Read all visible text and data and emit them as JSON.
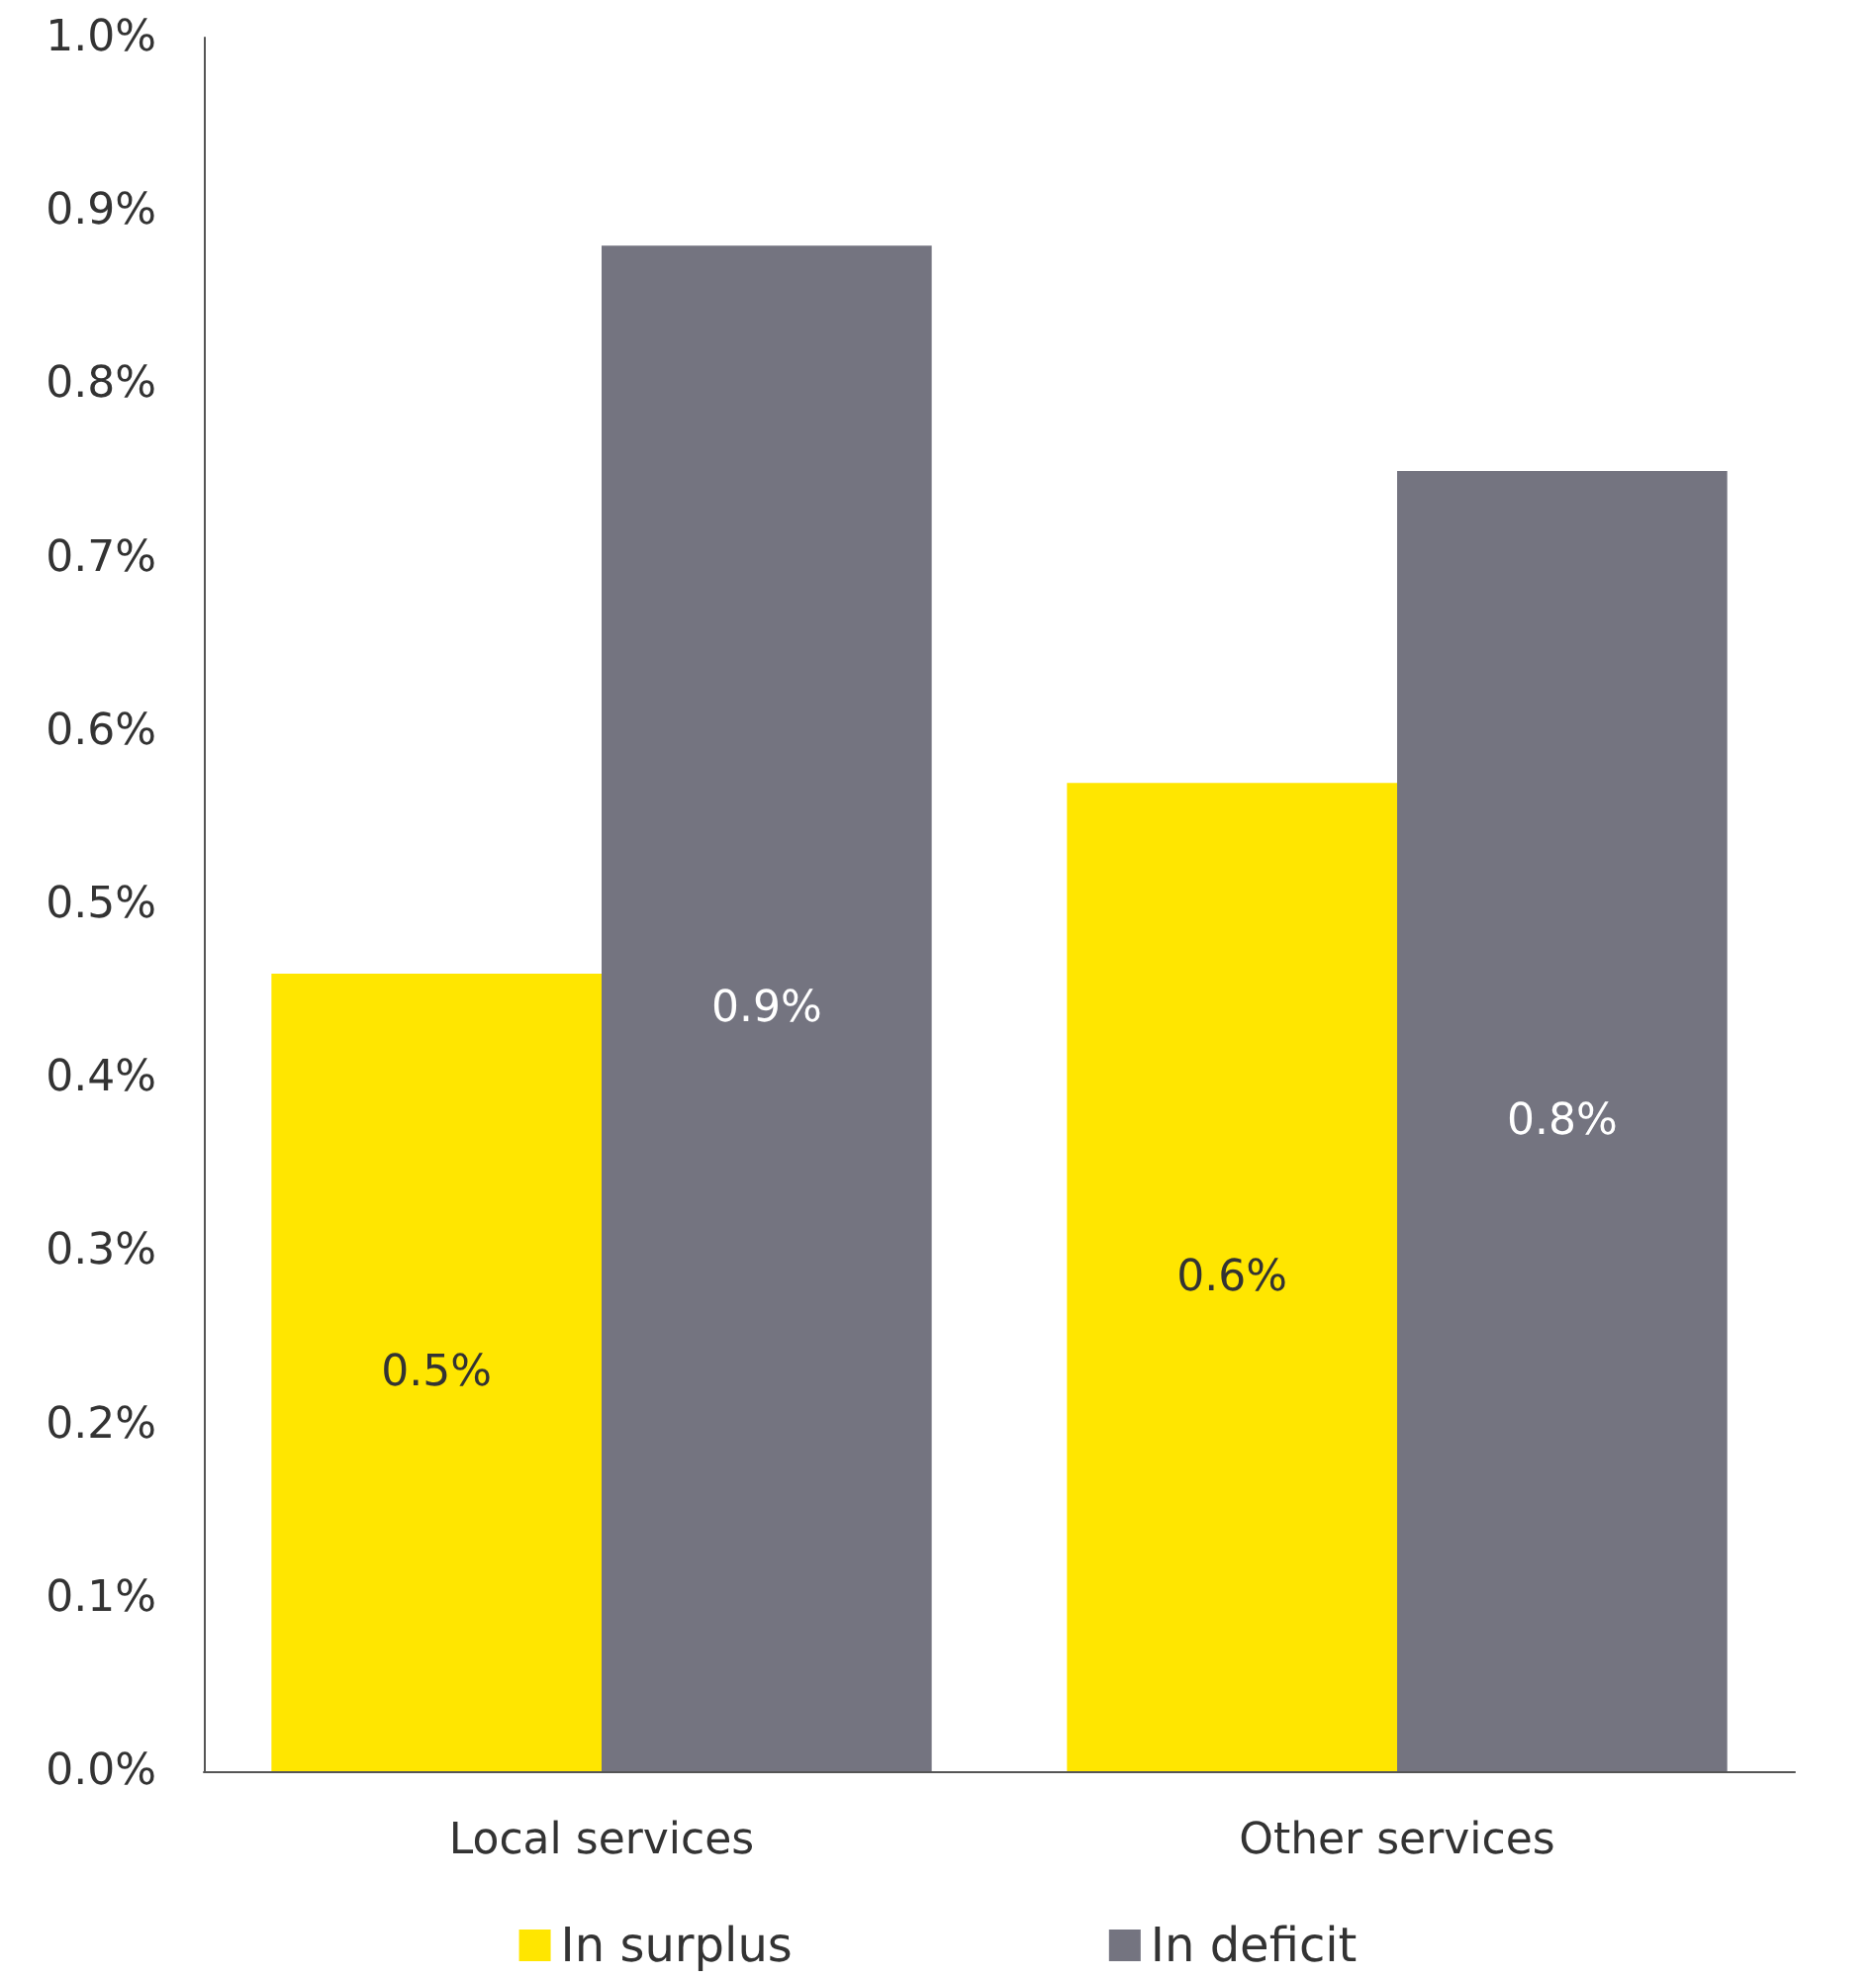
{
  "chart_data": {
    "type": "bar",
    "categories": [
      "Local services",
      "Other services"
    ],
    "series": [
      {
        "name": "In surplus",
        "color": "#ffe600",
        "values": [
          0.46,
          0.57
        ],
        "value_labels": [
          "0.5%",
          "0.6%"
        ]
      },
      {
        "name": "In deficit",
        "color": "#747480",
        "values": [
          0.88,
          0.75
        ],
        "value_labels": [
          "0.9%",
          "0.8%"
        ]
      }
    ],
    "ylim": [
      0,
      1
    ],
    "yticks": [
      {
        "value": 0,
        "label": "0.0%"
      },
      {
        "value": 0.1,
        "label": "0.1%"
      },
      {
        "value": 0.2,
        "label": "0.2%"
      },
      {
        "value": 0.3,
        "label": "0.3%"
      },
      {
        "value": 0.4,
        "label": "0.4%"
      },
      {
        "value": 0.5,
        "label": "0.5%"
      },
      {
        "value": 0.6,
        "label": "0.6%"
      },
      {
        "value": 0.7,
        "label": "0.7%"
      },
      {
        "value": 0.8,
        "label": "0.8%"
      },
      {
        "value": 0.9,
        "label": "0.9%"
      },
      {
        "value": 1,
        "label": "1.0%"
      }
    ],
    "grid": false,
    "legend": "bottom"
  }
}
